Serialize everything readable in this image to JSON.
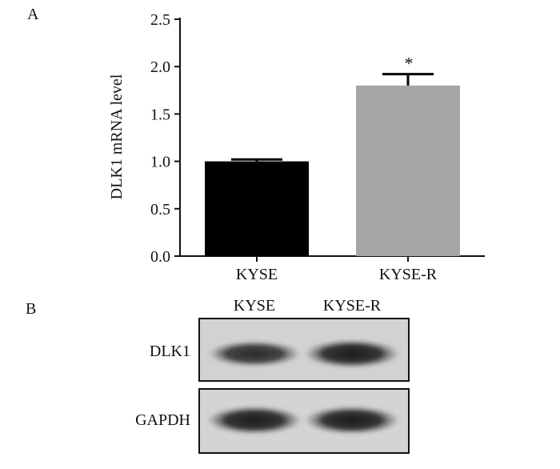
{
  "panel_a": {
    "label": "A"
  },
  "panel_b": {
    "label": "B",
    "lanes": [
      "KYSE",
      "KYSE-R"
    ],
    "rows": [
      {
        "label": "DLK1",
        "band_intensity": [
          0.8,
          1.0
        ]
      },
      {
        "label": "GAPDH",
        "band_intensity": [
          1.0,
          1.0
        ]
      }
    ]
  },
  "chart_data": {
    "type": "bar",
    "categories": [
      "KYSE",
      "KYSE-R"
    ],
    "values": [
      1.0,
      1.8
    ],
    "errors": [
      0.02,
      0.12
    ],
    "significance": [
      "",
      "*"
    ],
    "colors": [
      "#000000",
      "#a6a6a6"
    ],
    "xlabel": "",
    "ylabel": "DLK1 mRNA level",
    "ylim": [
      0,
      2.5
    ],
    "yticks": [
      "0.0",
      "0.5",
      "1.0",
      "1.5",
      "2.0",
      "2.5"
    ],
    "grid": false
  }
}
